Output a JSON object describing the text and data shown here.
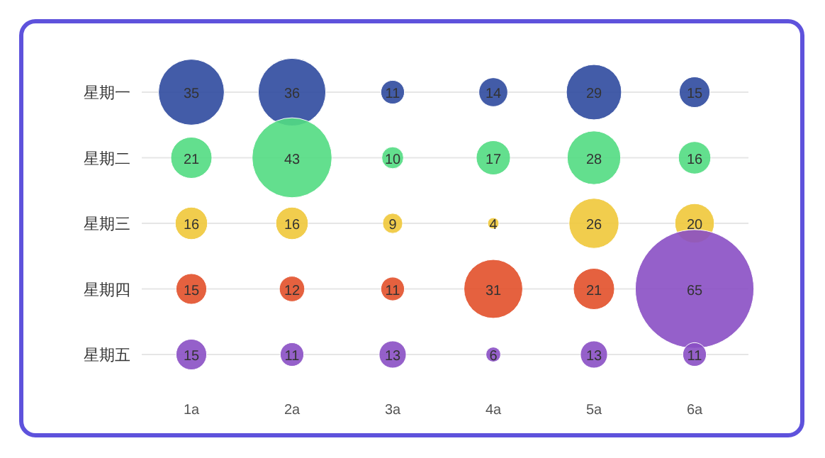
{
  "chart_data": {
    "type": "heatmap",
    "categories": [
      "1a",
      "2a",
      "3a",
      "4a",
      "5a",
      "6a"
    ],
    "y_categories": [
      "星期一",
      "星期二",
      "星期三",
      "星期四",
      "星期五"
    ],
    "grid": "y",
    "data_labels": true,
    "cells": [
      [
        35,
        36,
        11,
        14,
        29,
        15
      ],
      [
        21,
        43,
        10,
        17,
        28,
        16
      ],
      [
        16,
        16,
        9,
        4,
        26,
        20
      ],
      [
        15,
        12,
        11,
        31,
        21,
        65
      ],
      [
        15,
        11,
        13,
        6,
        13,
        11
      ]
    ],
    "colors": [
      [
        "#2f4a9e",
        "#2f4a9e",
        "#2f4a9e",
        "#2f4a9e",
        "#2f4a9e",
        "#2f4a9e"
      ],
      [
        "#52dc82",
        "#52dc82",
        "#52dc82",
        "#52dc82",
        "#52dc82",
        "#52dc82"
      ],
      [
        "#f0c83a",
        "#f0c83a",
        "#f0c83a",
        "#f0c83a",
        "#f0c83a",
        "#f0c83a"
      ],
      [
        "#e2502a",
        "#e2502a",
        "#e2502a",
        "#e2502a",
        "#e2502a",
        "#8a4fc4"
      ],
      [
        "#8a4fc4",
        "#8a4fc4",
        "#8a4fc4",
        "#8a4fc4",
        "#8a4fc4",
        "#8a4fc4"
      ]
    ]
  }
}
